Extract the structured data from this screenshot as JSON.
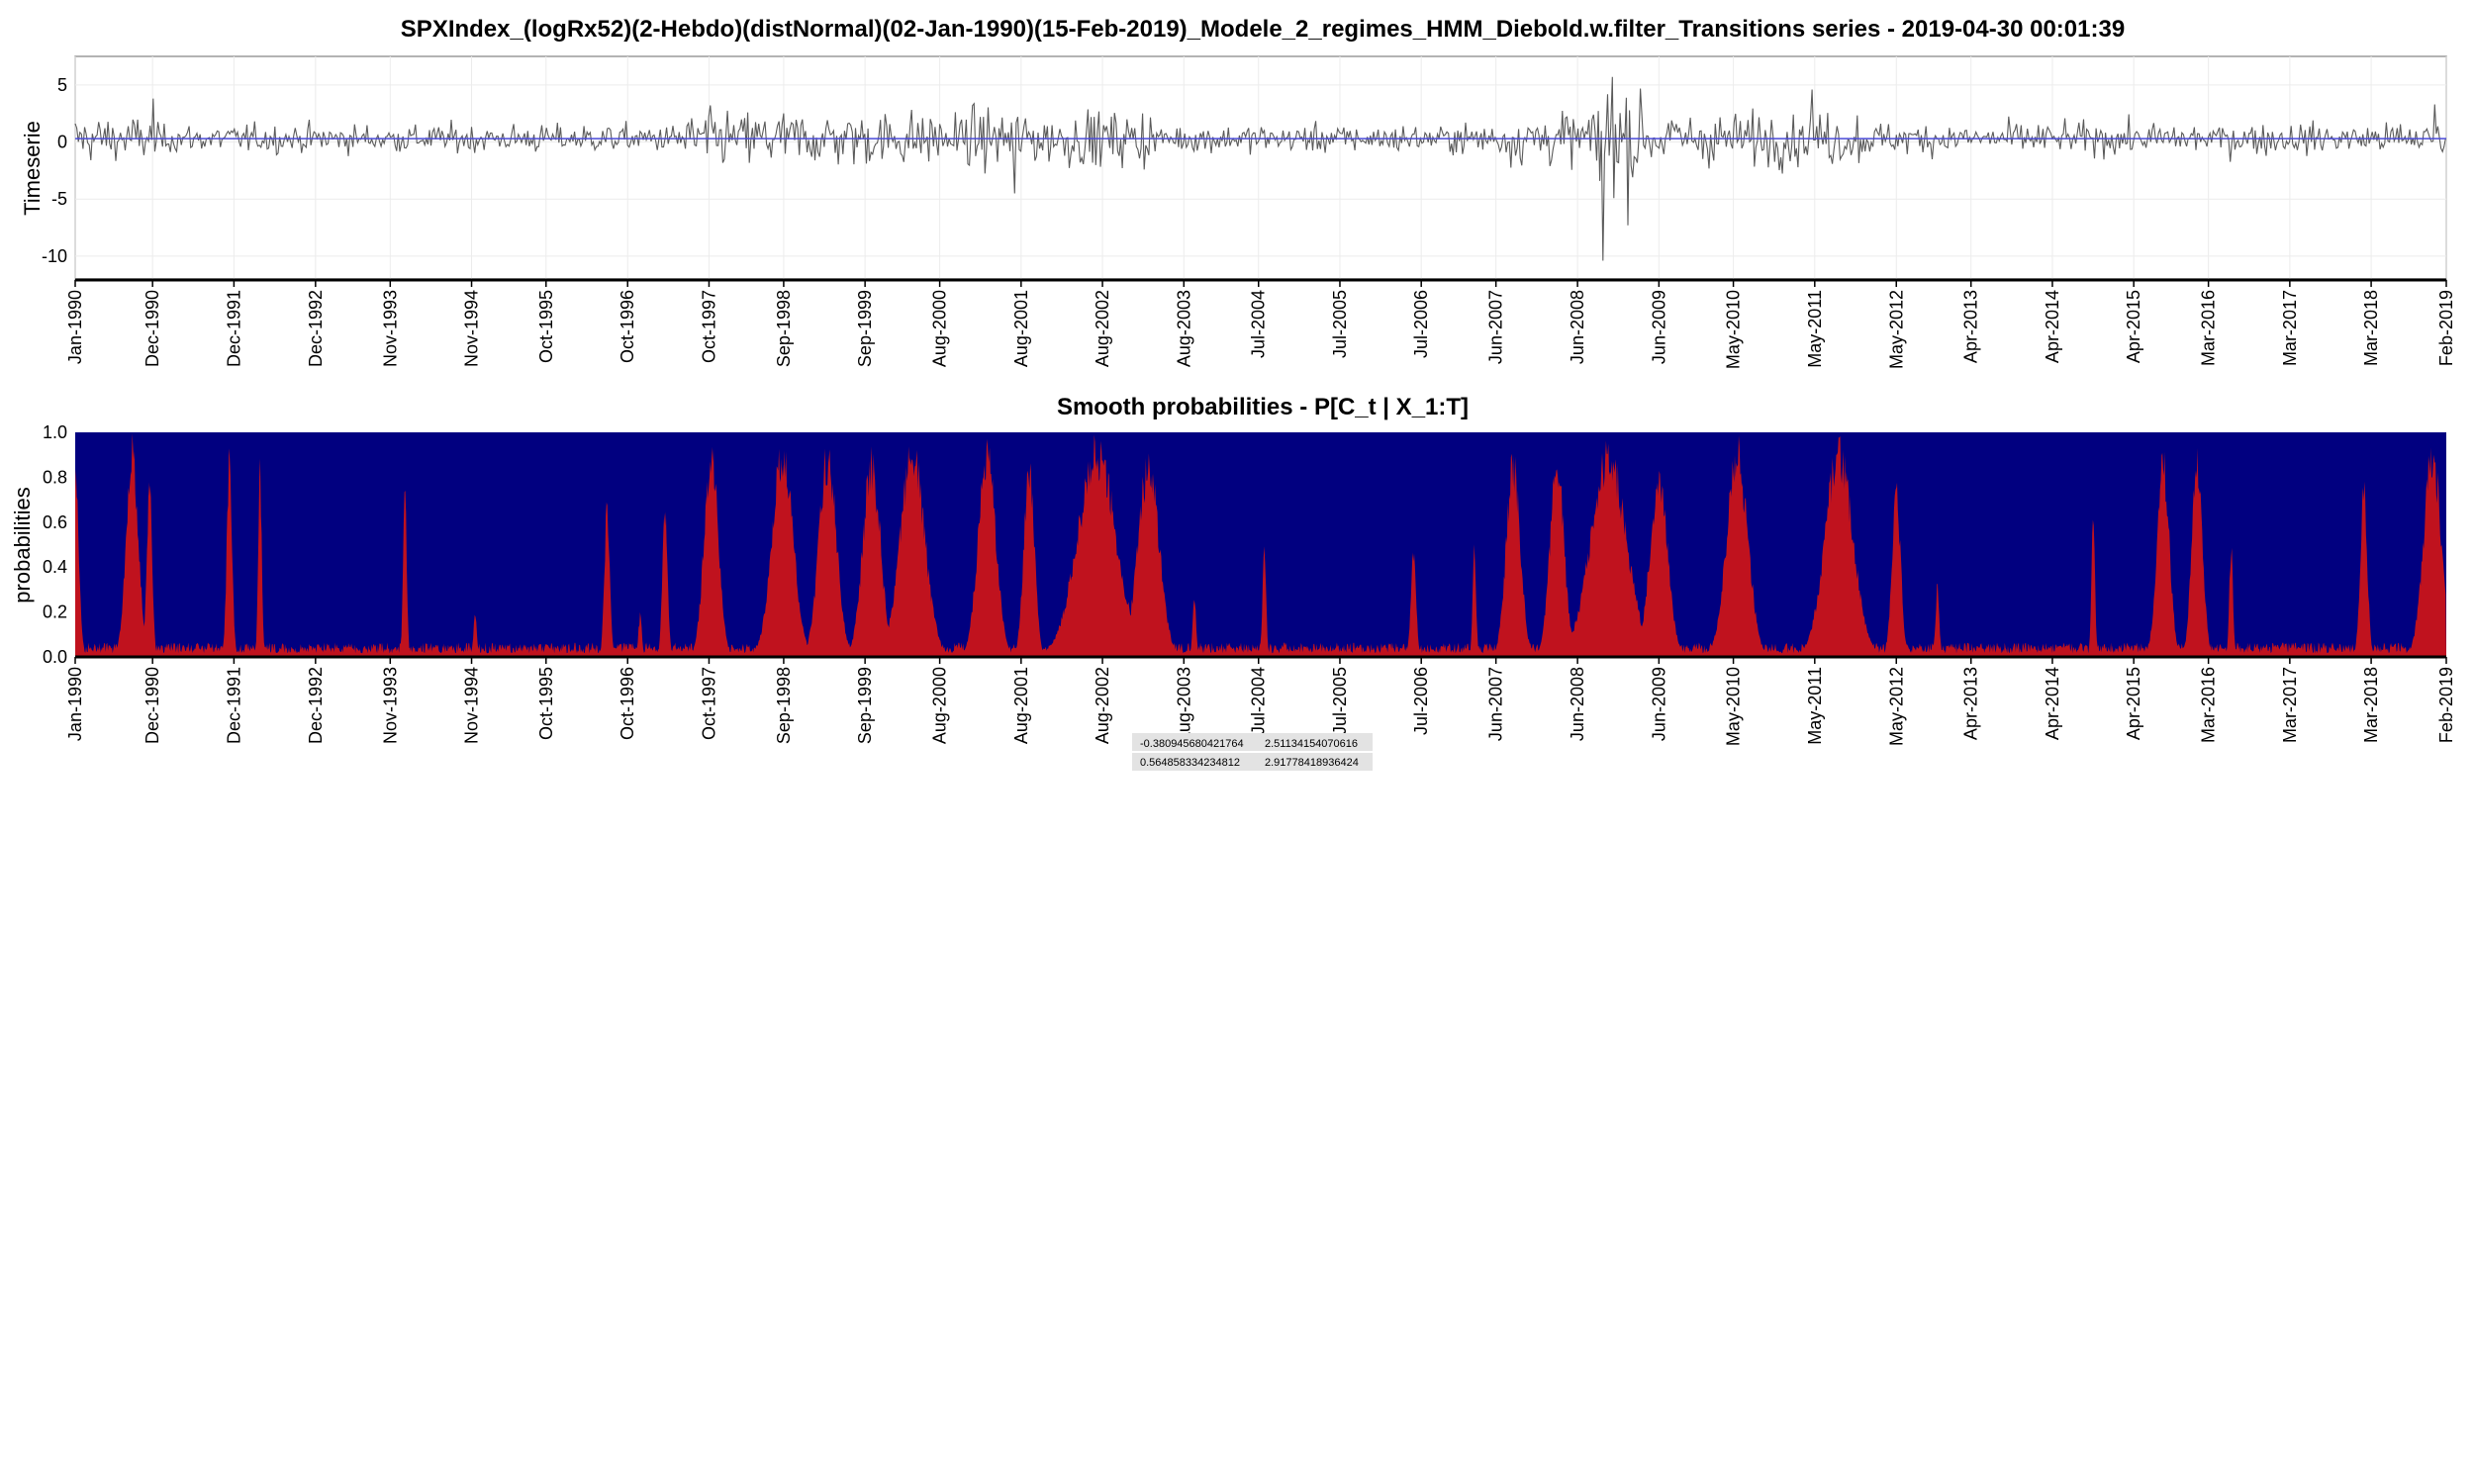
{
  "chart_data": [
    {
      "type": "line",
      "title": "SPXIndex_(logRx52)(2-Hebdo)(distNormal)(02-Jan-1990)(15-Feb-2019)_Modele_2_regimes_HMM_Diebold.w.filter_Transitions series -  2019-04-30 00:01:39",
      "xlabel": "",
      "ylabel": "Timeserie",
      "ylim": [
        -12,
        7.5
      ],
      "yticks": [
        5,
        0,
        -5,
        -10
      ],
      "xlim": [
        "1990-01-02",
        "2019-02-15"
      ],
      "xtick_labels": [
        "Jan-1990",
        "Dec-1990",
        "Dec-1991",
        "Dec-1992",
        "Nov-1993",
        "Nov-1994",
        "Oct-1995",
        "Oct-1996",
        "Oct-1997",
        "Sep-1998",
        "Sep-1999",
        "Aug-2000",
        "Aug-2001",
        "Aug-2002",
        "Aug-2003",
        "Jul-2004",
        "Jul-2005",
        "Jul-2006",
        "Jun-2007",
        "Jun-2008",
        "Jun-2009",
        "May-2010",
        "May-2011",
        "May-2012",
        "Apr-2013",
        "Apr-2014",
        "Apr-2015",
        "Mar-2016",
        "Mar-2017",
        "Mar-2018",
        "Feb-2019"
      ],
      "grid": true,
      "colors": {
        "series": "#5a5a5a",
        "mean_line": "#4a4ad8"
      },
      "mean": 0.3,
      "volatility_regimes": [
        {
          "from": "1990-01-02",
          "to": "1990-12-31",
          "std": 1.3
        },
        {
          "from": "1991-01-01",
          "to": "1997-06-30",
          "std": 0.8
        },
        {
          "from": "1997-07-01",
          "to": "2003-03-31",
          "std": 1.6
        },
        {
          "from": "2003-04-01",
          "to": "2007-06-30",
          "std": 0.8
        },
        {
          "from": "2007-07-01",
          "to": "2008-08-31",
          "std": 1.5
        },
        {
          "from": "2008-09-01",
          "to": "2009-03-31",
          "std": 3.2
        },
        {
          "from": "2009-04-01",
          "to": "2011-12-31",
          "std": 1.5
        },
        {
          "from": "2012-01-01",
          "to": "2019-02-15",
          "std": 0.9
        }
      ],
      "extremes": [
        {
          "date": "1990-12-20",
          "value": 3.8
        },
        {
          "date": "2001-07-20",
          "value": -4.5
        },
        {
          "date": "2008-10-10",
          "value": -10.4
        },
        {
          "date": "2008-11-20",
          "value": 5.7
        },
        {
          "date": "2011-05-01",
          "value": 4.6
        },
        {
          "date": "2018-12-24",
          "value": 3.3
        }
      ]
    },
    {
      "type": "area",
      "title": "Smooth probabilities - P[C_t | X_1:T]",
      "xlabel": "",
      "ylabel": "probabilities",
      "ylim": [
        0,
        1
      ],
      "ytick_labels": [
        "1.0",
        "0.8",
        "0.6",
        "0.4",
        "0.2",
        "0.0"
      ],
      "xlim": [
        "1990-01-02",
        "2019-02-15"
      ],
      "xtick_labels": [
        "Jan-1990",
        "Dec-1990",
        "Dec-1991",
        "Dec-1992",
        "Nov-1993",
        "Nov-1994",
        "Oct-1995",
        "Oct-1996",
        "Oct-1997",
        "Sep-1998",
        "Sep-1999",
        "Aug-2000",
        "Aug-2001",
        "Aug-2002",
        "Aug-2003",
        "Jul-2004",
        "Jul-2005",
        "Jul-2006",
        "Jun-2007",
        "Jun-2008",
        "Jun-2009",
        "May-2010",
        "May-2011",
        "May-2012",
        "Apr-2013",
        "Apr-2014",
        "Apr-2015",
        "Mar-2016",
        "Mar-2017",
        "Mar-2018",
        "Feb-2019"
      ],
      "colors": {
        "regime_high": "#c0121e",
        "regime_low": "#010080"
      },
      "baseline": 0.04,
      "high_regime_probability_peaks": [
        {
          "date": "1990-01-02",
          "peak": 0.9,
          "width_weeks": 4
        },
        {
          "date": "1990-09-15",
          "peak": 1.0,
          "width_weeks": 7
        },
        {
          "date": "1990-12-01",
          "peak": 0.85,
          "width_weeks": 3
        },
        {
          "date": "1991-11-25",
          "peak": 0.98,
          "width_weeks": 3
        },
        {
          "date": "1992-04-10",
          "peak": 0.9,
          "width_weeks": 2
        },
        {
          "date": "1994-01-20",
          "peak": 0.85,
          "width_weeks": 2
        },
        {
          "date": "1994-12-01",
          "peak": 0.2,
          "width_weeks": 2
        },
        {
          "date": "1996-07-15",
          "peak": 0.75,
          "width_weeks": 3
        },
        {
          "date": "1996-12-10",
          "peak": 0.2,
          "width_weeks": 2
        },
        {
          "date": "1997-04-01",
          "peak": 0.7,
          "width_weeks": 3
        },
        {
          "date": "1997-10-25",
          "peak": 1.0,
          "width_weeks": 8
        },
        {
          "date": "1998-09-10",
          "peak": 1.0,
          "width_weeks": 12
        },
        {
          "date": "1999-04-01",
          "peak": 0.98,
          "width_weeks": 10
        },
        {
          "date": "1999-10-15",
          "peak": 0.95,
          "width_weeks": 10
        },
        {
          "date": "2000-04-15",
          "peak": 1.0,
          "width_weeks": 14
        },
        {
          "date": "2001-03-15",
          "peak": 1.0,
          "width_weeks": 10
        },
        {
          "date": "2001-09-20",
          "peak": 0.95,
          "width_weeks": 6
        },
        {
          "date": "2002-07-20",
          "peak": 1.0,
          "width_weeks": 22
        },
        {
          "date": "2003-03-10",
          "peak": 0.95,
          "width_weeks": 12
        },
        {
          "date": "2003-10-01",
          "peak": 0.3,
          "width_weeks": 2
        },
        {
          "date": "2004-08-10",
          "peak": 0.55,
          "width_weeks": 2
        },
        {
          "date": "2006-06-10",
          "peak": 0.52,
          "width_weeks": 3
        },
        {
          "date": "2007-03-10",
          "peak": 0.52,
          "width_weeks": 2
        },
        {
          "date": "2007-09-01",
          "peak": 0.95,
          "width_weeks": 8
        },
        {
          "date": "2008-03-15",
          "peak": 0.95,
          "width_weeks": 8
        },
        {
          "date": "2008-11-01",
          "peak": 1.0,
          "width_weeks": 20
        },
        {
          "date": "2009-06-15",
          "peak": 0.9,
          "width_weeks": 10
        },
        {
          "date": "2010-06-01",
          "peak": 1.0,
          "width_weeks": 12
        },
        {
          "date": "2011-09-01",
          "peak": 1.0,
          "width_weeks": 16
        },
        {
          "date": "2012-05-15",
          "peak": 0.8,
          "width_weeks": 5
        },
        {
          "date": "2012-11-15",
          "peak": 0.35,
          "width_weeks": 2
        },
        {
          "date": "2014-10-15",
          "peak": 0.7,
          "width_weeks": 2
        },
        {
          "date": "2015-08-25",
          "peak": 0.95,
          "width_weeks": 7
        },
        {
          "date": "2016-01-25",
          "peak": 0.98,
          "width_weeks": 6
        },
        {
          "date": "2016-06-25",
          "peak": 0.55,
          "width_weeks": 2
        },
        {
          "date": "2018-02-10",
          "peak": 0.8,
          "width_weeks": 4
        },
        {
          "date": "2018-12-15",
          "peak": 1.0,
          "width_weeks": 10
        }
      ]
    }
  ],
  "parameter_table": {
    "rows": [
      [
        "-0.380945680421764",
        "2.51134154070616"
      ],
      [
        "0.564858334234812",
        "2.91778418936424"
      ]
    ]
  }
}
